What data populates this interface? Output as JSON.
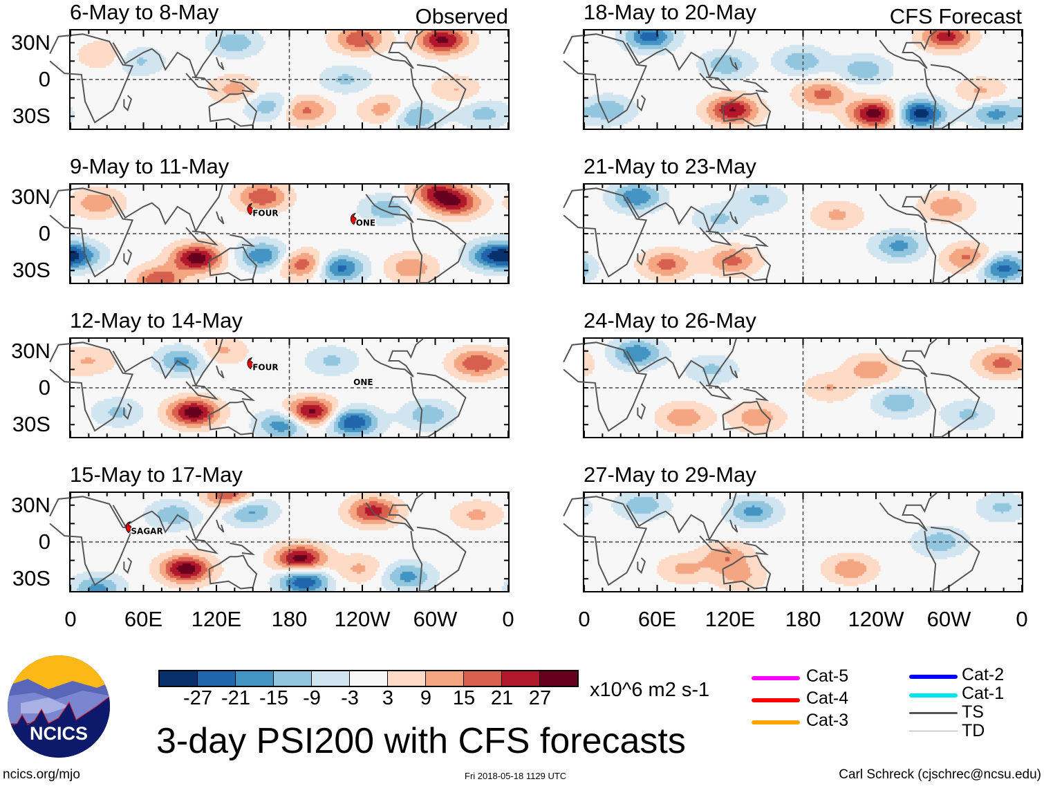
{
  "figure_title": "3-day PSI200 with CFS forecasts",
  "left_column_label": "Observed",
  "right_column_label": "CFS Forecast",
  "units": "x10^6 m2 s-1",
  "lat_labels": [
    "30N",
    "0",
    "30S"
  ],
  "lon_labels": [
    "0",
    "60E",
    "120E",
    "180",
    "120W",
    "60W",
    "0"
  ],
  "colorbar": {
    "ticks": [
      "-27",
      "-21",
      "-15",
      "-9",
      "-3",
      "3",
      "9",
      "15",
      "21",
      "27"
    ],
    "colors": [
      "#08306b",
      "#2166ac",
      "#4393c3",
      "#92c5de",
      "#d1e5f0",
      "#f7f7f7",
      "#fddbc7",
      "#f4a582",
      "#d6604d",
      "#b2182b",
      "#67001f"
    ]
  },
  "storm_legend": [
    {
      "label": "Cat-5",
      "color": "#ff00ff"
    },
    {
      "label": "Cat-4",
      "color": "#ff0000"
    },
    {
      "label": "Cat-3",
      "color": "#ffa500"
    },
    {
      "label": "Cat-2",
      "color": "#0000ff"
    },
    {
      "label": "Cat-1",
      "color": "#00e5ee"
    },
    {
      "label": "TS",
      "color": "#555555"
    },
    {
      "label": "TD",
      "color": "#aaaaaa"
    }
  ],
  "footer": {
    "left": "ncics.org/mjo",
    "center": "Fri 2018-05-18 1129 UTC",
    "right": "Carl Schreck (cjschrec@ncsu.edu)"
  },
  "logo_text": "NCICS",
  "chart_data": {
    "type": "heatmap",
    "lon_range": [
      0,
      360
    ],
    "lat_range": [
      -40,
      40
    ],
    "panels": [
      {
        "title": "6-May to 8-May",
        "source": "Observed",
        "anomalies": [
          [
            238,
            33,
            18
          ],
          [
            306,
            32,
            25
          ],
          [
            135,
            30,
            -12
          ],
          [
            135,
            -8,
            10
          ],
          [
            192,
            -25,
            15
          ],
          [
            164,
            -22,
            -12
          ],
          [
            226,
            0,
            -9
          ],
          [
            283,
            -30,
            -15
          ],
          [
            260,
            -25,
            12
          ],
          [
            56,
            15,
            -9
          ],
          [
            27,
            20,
            8
          ],
          [
            317,
            -8,
            8
          ],
          [
            340,
            -28,
            -10
          ]
        ],
        "storms": []
      },
      {
        "title": "9-May to 11-May",
        "source": "Observed",
        "anomalies": [
          [
            104,
            -20,
            27
          ],
          [
            192,
            -25,
            18
          ],
          [
            221,
            -28,
            -21
          ],
          [
            158,
            -18,
            -18
          ],
          [
            158,
            30,
            18
          ],
          [
            317,
            25,
            21
          ],
          [
            300,
            34,
            18
          ],
          [
            346,
            -18,
            -18
          ],
          [
            5,
            -18,
            -18
          ],
          [
            22,
            25,
            12
          ],
          [
            280,
            -28,
            12
          ],
          [
            260,
            20,
            -12
          ],
          [
            73,
            -38,
            18
          ]
        ],
        "storms": [
          {
            "name": "FOUR",
            "lon": 148,
            "lat": 20,
            "marker": true
          },
          {
            "name": "ONE",
            "lon": 233,
            "lat": 12,
            "marker": true
          }
        ]
      },
      {
        "title": "12-May to 14-May",
        "source": "Observed",
        "anomalies": [
          [
            101,
            -20,
            27
          ],
          [
            198,
            -20,
            27
          ],
          [
            232,
            -28,
            -24
          ],
          [
            175,
            -30,
            -18
          ],
          [
            92,
            22,
            -15
          ],
          [
            124,
            30,
            9
          ],
          [
            334,
            20,
            18
          ],
          [
            294,
            -22,
            -12
          ],
          [
            16,
            22,
            8
          ],
          [
            215,
            22,
            -9
          ],
          [
            39,
            -20,
            -9
          ]
        ],
        "storms": [
          {
            "name": "FOUR",
            "lon": 148,
            "lat": 20,
            "marker": true
          },
          {
            "name": "ONE",
            "lon": 231,
            "lat": 8,
            "marker": false
          }
        ]
      },
      {
        "title": "15-May to 17-May",
        "source": "Observed",
        "anomalies": [
          [
            95,
            -22,
            27
          ],
          [
            189,
            -14,
            27
          ],
          [
            192,
            -32,
            -24
          ],
          [
            249,
            25,
            21
          ],
          [
            147,
            25,
            -15
          ],
          [
            277,
            -28,
            -15
          ],
          [
            130,
            38,
            18
          ],
          [
            22,
            -38,
            -15
          ],
          [
            334,
            22,
            9
          ],
          [
            85,
            22,
            -12
          ],
          [
            238,
            -22,
            9
          ]
        ],
        "storms": [
          {
            "name": "SAGAR",
            "lon": 48,
            "lat": 12,
            "marker": true
          }
        ]
      },
      {
        "title": "18-May to 20-May",
        "source": "CFS Forecast",
        "anomalies": [
          [
            54,
            35,
            -21
          ],
          [
            298,
            35,
            21
          ],
          [
            122,
            -25,
            24
          ],
          [
            239,
            -28,
            27
          ],
          [
            276,
            -28,
            -27
          ],
          [
            117,
            12,
            -12
          ],
          [
            179,
            15,
            -12
          ],
          [
            230,
            8,
            -12
          ],
          [
            196,
            -12,
            15
          ],
          [
            338,
            -28,
            -15
          ],
          [
            20,
            -25,
            -12
          ],
          [
            327,
            -10,
            9
          ]
        ],
        "storms": []
      },
      {
        "title": "21-May to 23-May",
        "source": "CFS Forecast",
        "anomalies": [
          [
            43,
            30,
            -18
          ],
          [
            68,
            -25,
            15
          ],
          [
            122,
            -22,
            15
          ],
          [
            259,
            -10,
            -15
          ],
          [
            344,
            -28,
            -21
          ],
          [
            208,
            15,
            9
          ],
          [
            298,
            22,
            12
          ],
          [
            111,
            12,
            -9
          ],
          [
            316,
            -20,
            15
          ],
          [
            145,
            28,
            -9
          ]
        ],
        "storms": []
      },
      {
        "title": "24-May to 26-May",
        "source": "CFS Forecast",
        "anomalies": [
          [
            43,
            28,
            -18
          ],
          [
            236,
            15,
            12
          ],
          [
            344,
            20,
            15
          ],
          [
            82,
            -24,
            12
          ],
          [
            142,
            -24,
            12
          ],
          [
            259,
            -12,
            -12
          ],
          [
            202,
            0,
            8
          ],
          [
            105,
            15,
            -9
          ],
          [
            316,
            -22,
            -9
          ]
        ],
        "storms": []
      },
      {
        "title": "27-May to 29-May",
        "source": "CFS Forecast",
        "anomalies": [
          [
            139,
            25,
            -15
          ],
          [
            48,
            30,
            -12
          ],
          [
            117,
            -12,
            12
          ],
          [
            128,
            -28,
            9
          ],
          [
            293,
            0,
            -12
          ],
          [
            219,
            -22,
            12
          ],
          [
            344,
            28,
            -9
          ],
          [
            82,
            -22,
            9
          ]
        ],
        "storms": []
      }
    ]
  }
}
